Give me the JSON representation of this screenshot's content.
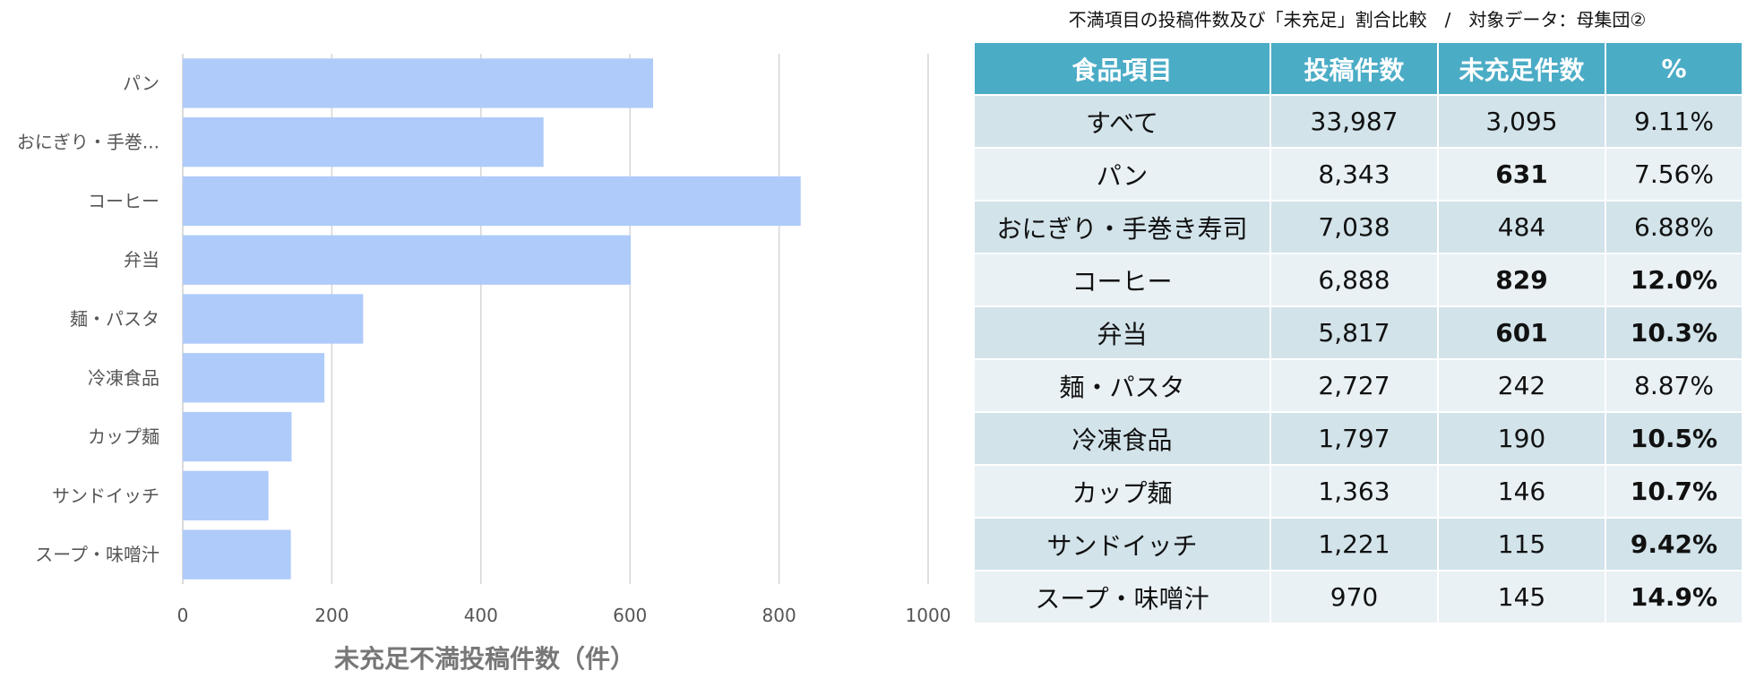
{
  "chart_data": {
    "type": "bar",
    "orientation": "horizontal",
    "categories": [
      "パン",
      "おにぎり・手巻...",
      "コーヒー",
      "弁当",
      "麺・パスタ",
      "冷凍食品",
      "カップ麺",
      "サンドイッチ",
      "スープ・味噌汁"
    ],
    "values": [
      631,
      484,
      829,
      601,
      242,
      190,
      146,
      115,
      145
    ],
    "xlabel": "未充足不満投稿件数（件）",
    "xlim": [
      0,
      1000
    ],
    "xticks": [
      "0",
      "200",
      "400",
      "600",
      "800",
      "1000"
    ],
    "grid": true,
    "bar_color": "#aecbfa"
  },
  "table": {
    "title": "不満項目の投稿件数及び「未充足」割合比較　/　対象データ：母集団②",
    "header_color": "#4bacc6",
    "headers": [
      "食品項目",
      "投稿件数",
      "未充足件数",
      "%"
    ],
    "rows": [
      {
        "cells": [
          "すべて",
          "33,987",
          "3,095",
          "9.11%"
        ],
        "bold": [
          false,
          false,
          false,
          false
        ]
      },
      {
        "cells": [
          "パン",
          "8,343",
          "631",
          "7.56%"
        ],
        "bold": [
          false,
          false,
          true,
          false
        ]
      },
      {
        "cells": [
          "おにぎり・手巻き寿司",
          "7,038",
          "484",
          "6.88%"
        ],
        "bold": [
          false,
          false,
          false,
          false
        ]
      },
      {
        "cells": [
          "コーヒー",
          "6,888",
          "829",
          "12.0%"
        ],
        "bold": [
          false,
          false,
          true,
          true
        ]
      },
      {
        "cells": [
          "弁当",
          "5,817",
          "601",
          "10.3%"
        ],
        "bold": [
          false,
          false,
          true,
          true
        ]
      },
      {
        "cells": [
          "麺・パスタ",
          "2,727",
          "242",
          "8.87%"
        ],
        "bold": [
          false,
          false,
          false,
          false
        ]
      },
      {
        "cells": [
          "冷凍食品",
          "1,797",
          "190",
          "10.5%"
        ],
        "bold": [
          false,
          false,
          false,
          true
        ]
      },
      {
        "cells": [
          "カップ麺",
          "1,363",
          "146",
          "10.7%"
        ],
        "bold": [
          false,
          false,
          false,
          true
        ]
      },
      {
        "cells": [
          "サンドイッチ",
          "1,221",
          "115",
          "9.42%"
        ],
        "bold": [
          false,
          false,
          false,
          true
        ]
      },
      {
        "cells": [
          "スープ・味噌汁",
          "970",
          "145",
          "14.9%"
        ],
        "bold": [
          false,
          false,
          false,
          true
        ]
      }
    ]
  }
}
